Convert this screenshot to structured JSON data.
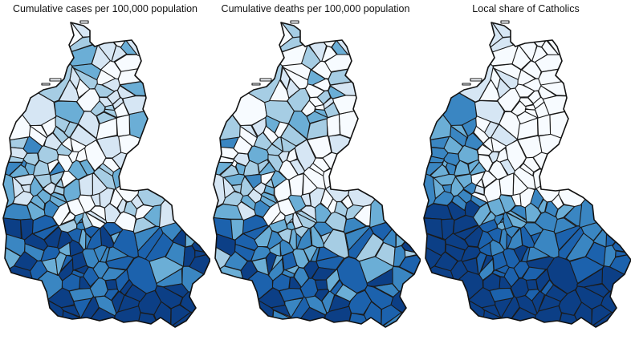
{
  "maps": [
    {
      "id": "cases",
      "title": "Cumulative cases per 100,000 population",
      "seed": 11
    },
    {
      "id": "deaths",
      "title": "Cumulative deaths per 100,000 population",
      "seed": 29
    },
    {
      "id": "catholic",
      "title": "Local share of Catholics",
      "seed": 47
    }
  ],
  "colors": {
    "scale": [
      "#f7fbff",
      "#d6e6f4",
      "#a6cde4",
      "#6baed6",
      "#3a86c2",
      "#1c62ad",
      "#0c3f86"
    ],
    "border": "#1a1a1a"
  }
}
